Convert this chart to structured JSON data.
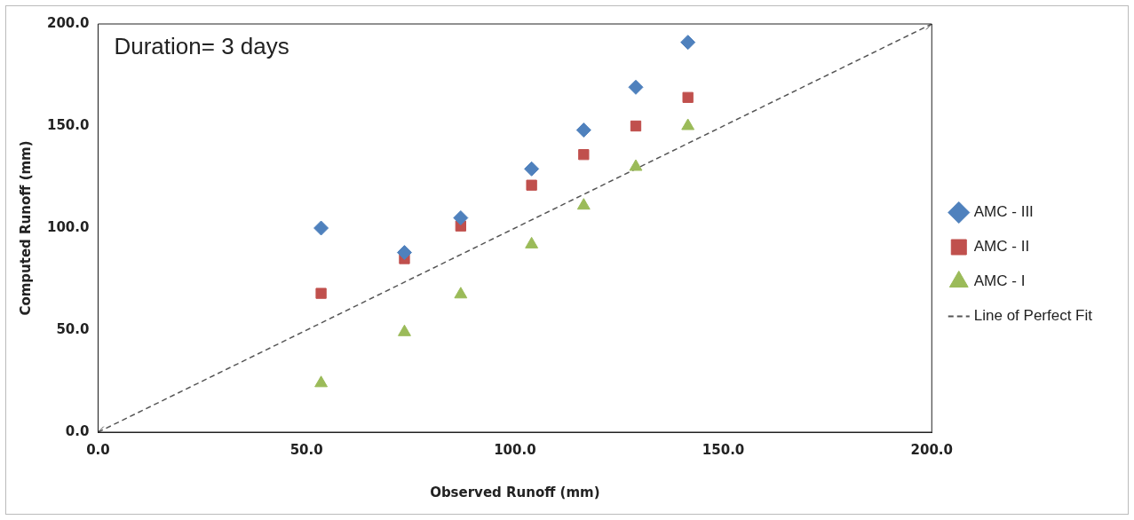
{
  "chart_data": {
    "type": "scatter",
    "xlabel": "Observed Runoff (mm)",
    "ylabel": "Computed Runoff (mm)",
    "annotations": [
      "Duration= 3 days"
    ],
    "xlim": [
      0,
      200
    ],
    "xticks": [
      {
        "value": 0,
        "label": "0.0"
      },
      {
        "value": 50,
        "label": "50.0"
      },
      {
        "value": 100,
        "label": "100.0"
      },
      {
        "value": 150,
        "label": "150.0"
      },
      {
        "value": 200,
        "label": "200.0"
      }
    ],
    "ylim": [
      0,
      200
    ],
    "yticks": [
      {
        "value": 0,
        "label": "0.0"
      },
      {
        "value": 50,
        "label": "50.0"
      },
      {
        "value": 100,
        "label": "100.0"
      },
      {
        "value": 150,
        "label": "150.0"
      },
      {
        "value": 200,
        "label": "200.0"
      }
    ],
    "grid": false,
    "legend": "right",
    "x": [
      53.5,
      73.5,
      87,
      104,
      116.5,
      129,
      141.5
    ],
    "series": [
      {
        "name": "AMC - III",
        "color": "#4f81bd",
        "marker": "diamond",
        "values": [
          100,
          88,
          105,
          129,
          148,
          169,
          191
        ]
      },
      {
        "name": "AMC - II",
        "color": "#c0504d",
        "marker": "square",
        "values": [
          68,
          85,
          101,
          121,
          136,
          150,
          164
        ]
      },
      {
        "name": "AMC - I",
        "color": "#9bbb59",
        "marker": "triangle",
        "values": [
          24,
          49,
          67.5,
          92,
          111,
          130,
          150
        ]
      },
      {
        "name": "Line of Perfect Fit",
        "type": "line",
        "color": "#555555",
        "marker": "cross",
        "line_style": "dashed",
        "x": [
          0,
          200
        ],
        "values": [
          0,
          200
        ]
      }
    ]
  }
}
